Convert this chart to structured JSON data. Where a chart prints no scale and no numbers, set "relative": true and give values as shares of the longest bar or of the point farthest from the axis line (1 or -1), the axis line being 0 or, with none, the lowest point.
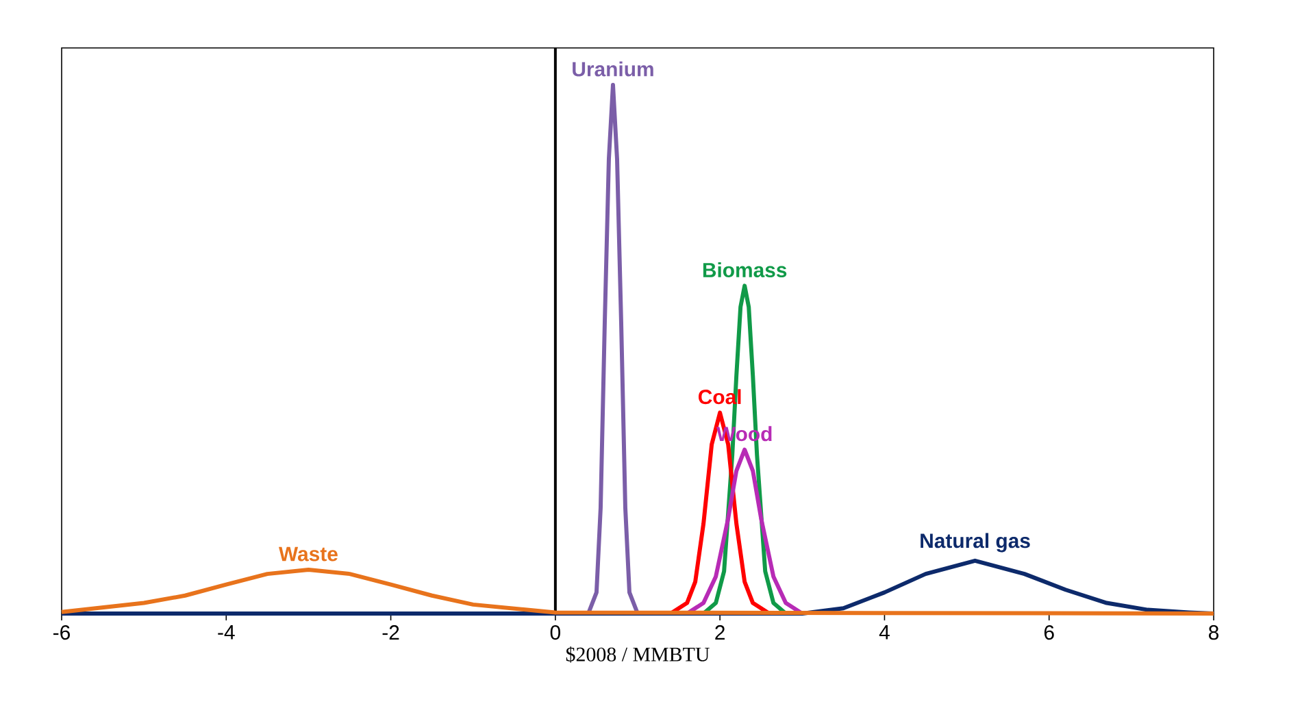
{
  "chart_data": {
    "type": "line",
    "relative": true,
    "xlabel": "$2008 / MMBTU",
    "xlim": [
      -6,
      8
    ],
    "xticks": [
      -6,
      -4,
      -2,
      0,
      2,
      4,
      6,
      8
    ],
    "grid": false,
    "marker": "none",
    "line_style": "solid",
    "tick_labels": "x",
    "ref_lines": [
      {
        "axis": "x",
        "value": 0,
        "color": "#000000"
      }
    ],
    "series": [
      {
        "name": "Uranium",
        "color": "#7b5ea8",
        "x": [
          0.4,
          0.5,
          0.55,
          0.6,
          0.65,
          0.7,
          0.75,
          0.8,
          0.85,
          0.9,
          1.0
        ],
        "values": [
          0,
          0.04,
          0.2,
          0.55,
          0.86,
          1,
          0.86,
          0.55,
          0.2,
          0.04,
          0
        ]
      },
      {
        "name": "Biomass",
        "color": "#109a48",
        "x": [
          1.8,
          1.95,
          2.05,
          2.15,
          2.2,
          2.25,
          2.3,
          2.35,
          2.4,
          2.45,
          2.55,
          2.65,
          2.8
        ],
        "values": [
          0,
          0.02,
          0.08,
          0.3,
          0.45,
          0.58,
          0.62,
          0.58,
          0.45,
          0.3,
          0.08,
          0.02,
          0
        ]
      },
      {
        "name": "Coal",
        "color": "#ff0000",
        "x": [
          1.4,
          1.6,
          1.7,
          1.8,
          1.9,
          2.0,
          2.1,
          2.2,
          2.3,
          2.4,
          2.6
        ],
        "values": [
          0,
          0.02,
          0.06,
          0.17,
          0.32,
          0.38,
          0.32,
          0.17,
          0.06,
          0.02,
          0
        ]
      },
      {
        "name": "Wood",
        "color": "#b72bb5",
        "x": [
          1.6,
          1.8,
          1.95,
          2.1,
          2.2,
          2.3,
          2.4,
          2.5,
          2.65,
          2.8,
          3.0
        ],
        "values": [
          0,
          0.02,
          0.07,
          0.18,
          0.27,
          0.31,
          0.27,
          0.18,
          0.07,
          0.02,
          0
        ]
      },
      {
        "name": "Natural gas",
        "color": "#0d2a6b",
        "x": [
          -6,
          3,
          3.5,
          4,
          4.5,
          5.1,
          5.7,
          6.2,
          6.7,
          7.2,
          7.7,
          8
        ],
        "values": [
          0,
          0,
          0.01,
          0.04,
          0.075,
          0.1,
          0.075,
          0.045,
          0.02,
          0.007,
          0.002,
          0
        ]
      },
      {
        "name": "Waste",
        "color": "#e8731c",
        "x": [
          -6,
          -5,
          -4.5,
          -4,
          -3.5,
          -3,
          -2.5,
          -2,
          -1.5,
          -1,
          0,
          8
        ],
        "values": [
          0.003,
          0.02,
          0.034,
          0.055,
          0.075,
          0.083,
          0.075,
          0.055,
          0.034,
          0.017,
          0.002,
          0
        ]
      }
    ]
  }
}
